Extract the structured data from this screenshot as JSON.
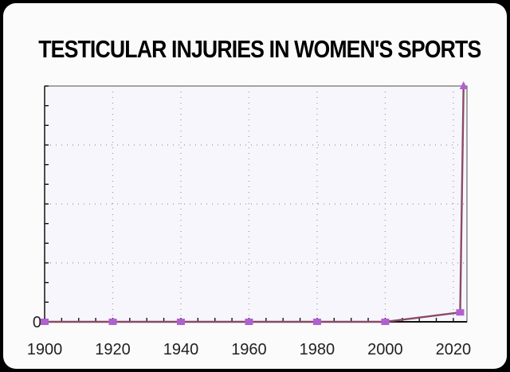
{
  "chart_data": {
    "type": "line",
    "title": "TESTICULAR INJURIES IN WOMEN'S SPORTS",
    "xlabel": "",
    "ylabel": "",
    "x_ticks": [
      "1900",
      "1920",
      "1940",
      "1960",
      "1980",
      "2000",
      "2020"
    ],
    "y_ticks": [
      "0"
    ],
    "xlim": [
      1900,
      2024
    ],
    "ylim": [
      0,
      100
    ],
    "grid": true,
    "series": [
      {
        "color": "#8a4a66",
        "marker_color": "#b060d0",
        "points": [
          {
            "x": 1900,
            "y": 0
          },
          {
            "x": 1920,
            "y": 0
          },
          {
            "x": 1940,
            "y": 0
          },
          {
            "x": 1960,
            "y": 0
          },
          {
            "x": 1980,
            "y": 0
          },
          {
            "x": 2000,
            "y": 0
          },
          {
            "x": 2022,
            "y": 4
          },
          {
            "x": 2023,
            "y": 100
          }
        ]
      }
    ]
  }
}
